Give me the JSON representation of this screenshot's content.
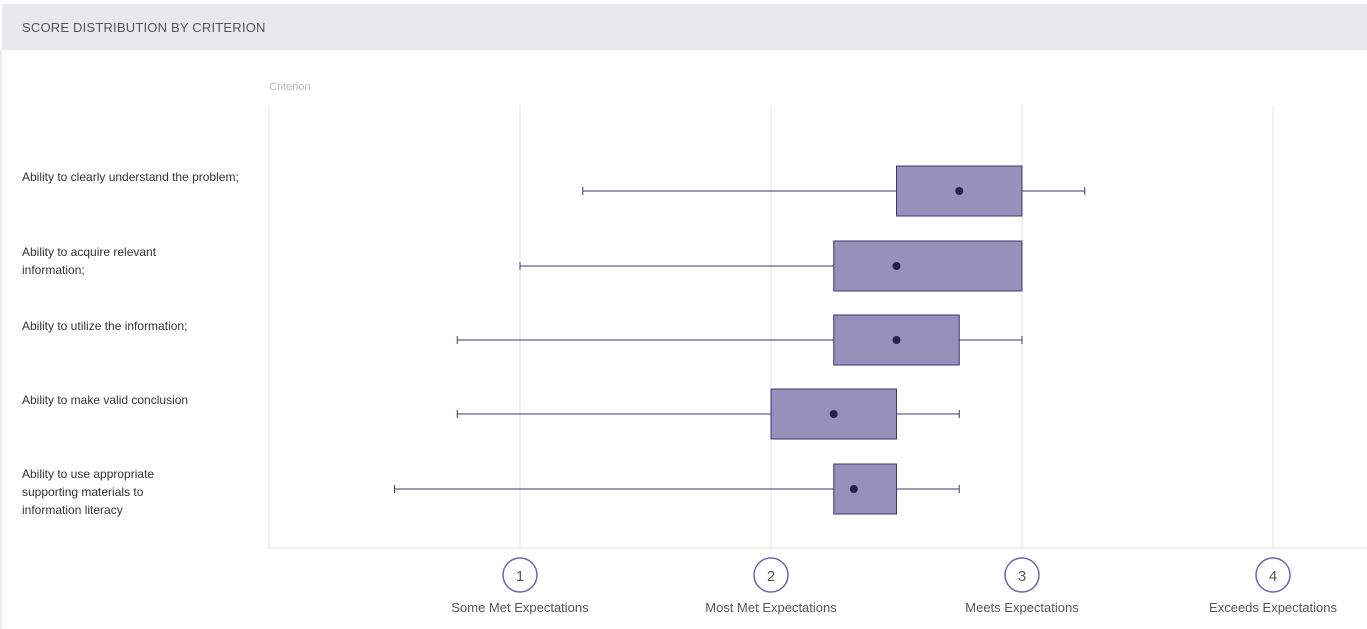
{
  "header": {
    "title": "SCORE DISTRIBUTION BY CRITERION"
  },
  "colors": {
    "box_fill": "#9690bb",
    "box_stroke": "#3c3670",
    "mean_dot": "#2a1f4a",
    "whisker": "#3c3670",
    "grid": "#e6e6ea",
    "tick_circle": "#6f66a8"
  },
  "chart_data": {
    "type": "boxplot",
    "orientation": "horizontal",
    "title": "SCORE DISTRIBUTION BY CRITERION",
    "ylabel": "Criterion",
    "xlim": [
      0,
      4.37
    ],
    "grid": true,
    "ticks": [
      {
        "value": 1,
        "number": "1",
        "label": "Some Met Expectations"
      },
      {
        "value": 2,
        "number": "2",
        "label": "Most Met Expectations"
      },
      {
        "value": 3,
        "number": "3",
        "label": "Meets Expectations"
      },
      {
        "value": 4,
        "number": "4",
        "label": "Exceeds Expectations"
      }
    ],
    "categories": [
      {
        "label": "Ability to clearly understand the problem;",
        "min": 1.25,
        "q1": 2.5,
        "q3": 3.0,
        "max": 3.25,
        "mean": 2.75
      },
      {
        "label": "Ability to acquire relevant information;",
        "min": 1.0,
        "q1": 2.25,
        "q3": 3.0,
        "max": 3.0,
        "mean": 2.5
      },
      {
        "label": "Ability to utilize the information;",
        "min": 0.75,
        "q1": 2.25,
        "q3": 2.75,
        "max": 3.0,
        "mean": 2.5
      },
      {
        "label": "Ability to make valid conclusion",
        "min": 0.75,
        "q1": 2.0,
        "q3": 2.5,
        "max": 2.75,
        "mean": 2.25
      },
      {
        "label": "Ability to use appropriate supporting materials to information literacy",
        "min": 0.5,
        "q1": 2.25,
        "q3": 2.5,
        "max": 2.75,
        "mean": 2.33
      }
    ]
  }
}
